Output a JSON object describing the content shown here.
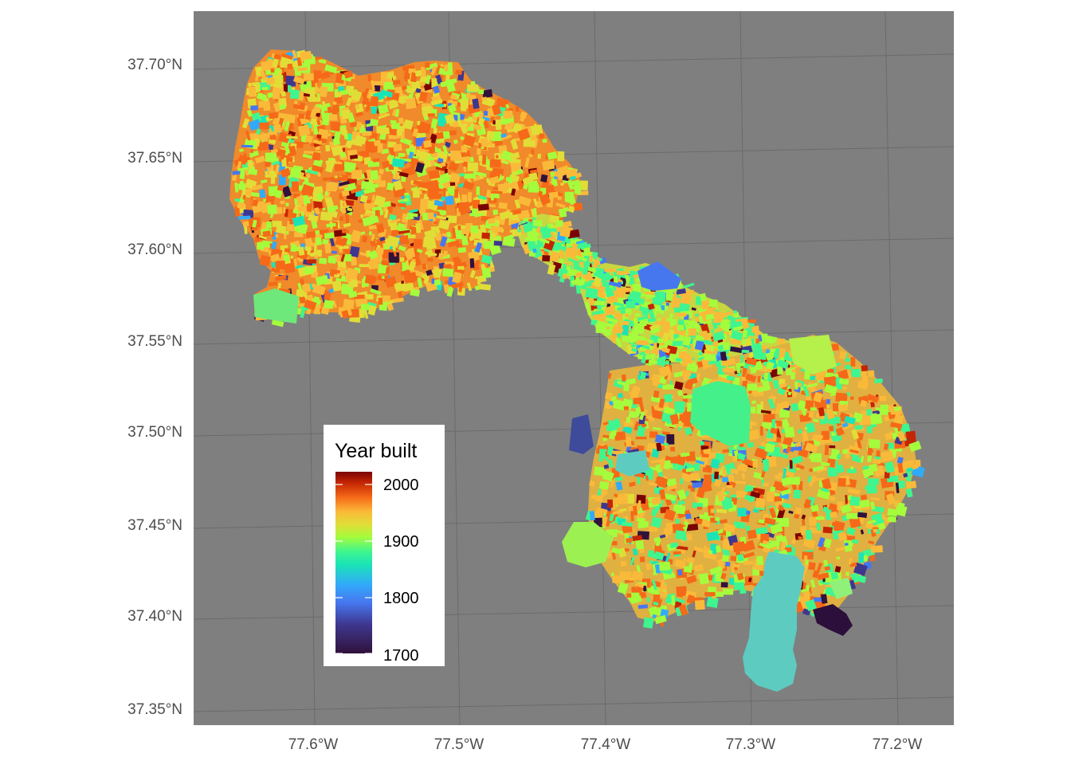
{
  "map": {
    "panel_background": "#7f7f7f",
    "grid_color": "#6b6b6b",
    "lat_labels": [
      "37.70°N",
      "37.65°N",
      "37.60°N",
      "37.55°N",
      "37.50°N",
      "37.45°N",
      "37.40°N",
      "37.35°N"
    ],
    "lon_labels": [
      "77.6°W",
      "77.5°W",
      "77.4°W",
      "77.3°W",
      "77.2°W"
    ]
  },
  "legend": {
    "title": "Year built",
    "ticks": [
      "2000",
      "1900",
      "1800",
      "1700"
    ],
    "colormap": "turbo",
    "colors": [
      "#7a0403",
      "#c42503",
      "#f56918",
      "#faba39",
      "#e1dd37",
      "#a4fc3c",
      "#3ff58f",
      "#1ae4b6",
      "#32aafa",
      "#4777ef",
      "#3e378f",
      "#30123b"
    ]
  },
  "regions": [
    {
      "name": "northwest",
      "dominant_colors": [
        "#f56918",
        "#faba39",
        "#e1dd37",
        "#a4fc3c"
      ]
    },
    {
      "name": "corridor",
      "dominant_colors": [
        "#faba39",
        "#a4fc3c",
        "#3ff58f"
      ]
    },
    {
      "name": "southeast",
      "dominant_colors": [
        "#f56918",
        "#faba39",
        "#a4fc3c",
        "#3ff58f"
      ]
    },
    {
      "name": "teal-park",
      "dominant_colors": [
        "#5ecbc0"
      ]
    }
  ]
}
